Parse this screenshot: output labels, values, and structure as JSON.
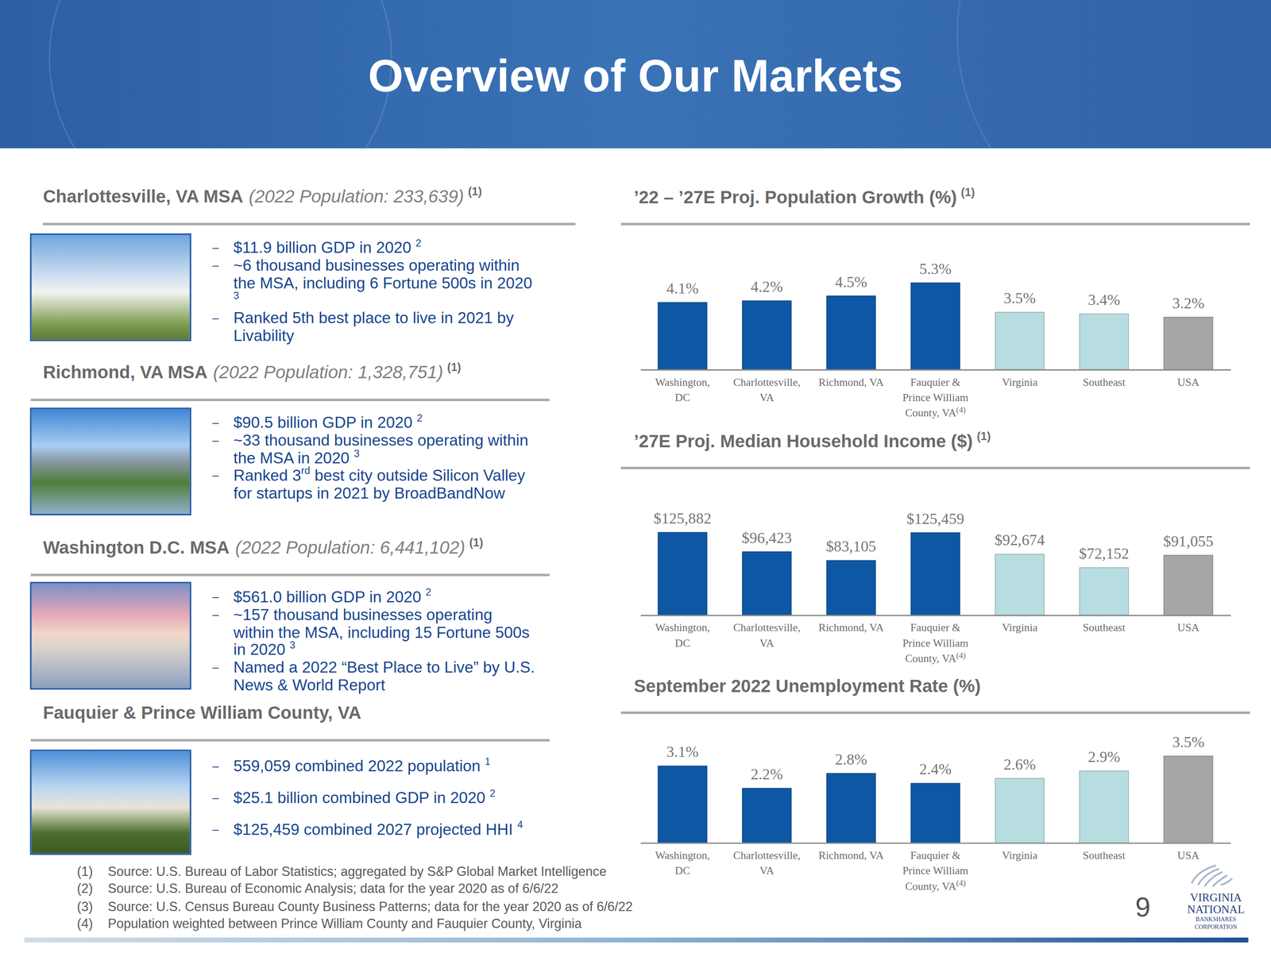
{
  "header": {
    "title": "Overview of Our Markets"
  },
  "panels": [
    {
      "name": "Charlottesville, VA MSA",
      "subtitle": "(2022 Population: 233,639)",
      "note": "(1)",
      "bullets": [
        [
          {
            "text": "$11.9 billion GDP in 2020 "
          },
          {
            "sup": "2"
          }
        ],
        [
          {
            "text": "~6 thousand businesses operating within the MSA, including 6 Fortune 500s in 2020 "
          },
          {
            "sup": "3"
          }
        ],
        [
          {
            "text": "Ranked 5th best place to live in 2021 by Livability"
          }
        ]
      ]
    },
    {
      "name": "Richmond, VA MSA",
      "subtitle": "(2022 Population: 1,328,751)",
      "note": "(1)",
      "bullets": [
        [
          {
            "text": "$90.5 billion GDP in 2020 "
          },
          {
            "sup": "2"
          }
        ],
        [
          {
            "text": "~33 thousand businesses operating within the MSA in 2020 "
          },
          {
            "sup": "3"
          }
        ],
        [
          {
            "text": "Ranked 3"
          },
          {
            "sup": "rd"
          },
          {
            "text": " best city outside Silicon Valley for startups in 2021 by BroadBandNow"
          }
        ]
      ]
    },
    {
      "name": "Washington D.C. MSA",
      "subtitle": "(2022 Population: 6,441,102)",
      "note": "(1)",
      "bullets": [
        [
          {
            "text": "$561.0 billion GDP in 2020 "
          },
          {
            "sup": "2"
          }
        ],
        [
          {
            "text": "~157 thousand businesses operating within the MSA, including 15 Fortune 500s in 2020 "
          },
          {
            "sup": "3"
          }
        ],
        [
          {
            "text": "Named a 2022 “Best Place to Live” by U.S. News & World Report"
          }
        ]
      ]
    },
    {
      "name": "Fauquier & Prince William County, VA",
      "bullets": [
        [
          {
            "text": "559,059 combined 2022 population "
          },
          {
            "sup": "1"
          }
        ],
        [
          {
            "text": "$25.1 billion combined GDP in 2020 "
          },
          {
            "sup": "2"
          }
        ],
        [
          {
            "text": "$125,459 combined 2027 projected HHI "
          },
          {
            "sup": "4"
          }
        ]
      ]
    }
  ],
  "chart_data": [
    {
      "type": "bar",
      "title": "’22 – ’27E Proj. Population Growth (%)",
      "title_note": "(1)",
      "categories": [
        "Washington, DC",
        "Charlottesville, VA",
        "Richmond, VA",
        "Fauquier & Prince William County, VA",
        "Virginia",
        "Southeast",
        "USA"
      ],
      "footnote_refs": [
        null,
        null,
        null,
        "(4)",
        null,
        null,
        null
      ],
      "values": [
        4.1,
        4.2,
        4.5,
        5.3,
        3.5,
        3.4,
        3.2
      ],
      "value_labels": [
        "4.1%",
        "4.2%",
        "4.5%",
        "5.3%",
        "3.5%",
        "3.4%",
        "3.2%"
      ],
      "colors": [
        "#0d57a4",
        "#0d57a4",
        "#0d57a4",
        "#0d57a4",
        "#b8dde1",
        "#b8dde1",
        "#a6a6a6"
      ],
      "data_labels": true,
      "tick_labels": "x"
    },
    {
      "type": "bar",
      "title": "’27E Proj. Median Household Income ($)",
      "title_note": "(1)",
      "categories": [
        "Washington, DC",
        "Charlottesville, VA",
        "Richmond, VA",
        "Fauquier & Prince William County, VA",
        "Virginia",
        "Southeast",
        "USA"
      ],
      "footnote_refs": [
        null,
        null,
        null,
        "(4)",
        null,
        null,
        null
      ],
      "values": [
        125882,
        96423,
        83105,
        125459,
        92674,
        72152,
        91055
      ],
      "value_labels": [
        "$125,882",
        "$96,423",
        "$83,105",
        "$125,459",
        "$92,674",
        "$72,152",
        "$91,055"
      ],
      "colors": [
        "#0d57a4",
        "#0d57a4",
        "#0d57a4",
        "#0d57a4",
        "#b8dde1",
        "#b8dde1",
        "#a6a6a6"
      ],
      "data_labels": true,
      "tick_labels": "x"
    },
    {
      "type": "bar",
      "title": "September 2022 Unemployment Rate (%)",
      "categories": [
        "Washington, DC",
        "Charlottesville, VA",
        "Richmond, VA",
        "Fauquier & Prince William County, VA",
        "Virginia",
        "Southeast",
        "USA"
      ],
      "footnote_refs": [
        null,
        null,
        null,
        "(4)",
        null,
        null,
        null
      ],
      "values": [
        3.1,
        2.2,
        2.8,
        2.4,
        2.6,
        2.9,
        3.5
      ],
      "value_labels": [
        "3.1%",
        "2.2%",
        "2.8%",
        "2.4%",
        "2.6%",
        "2.9%",
        "3.5%"
      ],
      "colors": [
        "#0d57a4",
        "#0d57a4",
        "#0d57a4",
        "#0d57a4",
        "#b8dde1",
        "#b8dde1",
        "#a6a6a6"
      ],
      "data_labels": true,
      "tick_labels": "x"
    }
  ],
  "footnotes": [
    {
      "number": "(1)",
      "text": "Source: U.S. Bureau of Labor Statistics; aggregated by S&P Global Market Intelligence"
    },
    {
      "number": "(2)",
      "text": "Source: U.S. Bureau of Economic Analysis; data for the year 2020 as of 6/6/22"
    },
    {
      "number": "(3)",
      "text": "Source: U.S. Census Bureau County Business Patterns; data for the year 2020 as of 6/6/22"
    },
    {
      "number": "(4)",
      "text": "Population weighted between Prince William County and Fauquier County, Virginia"
    }
  ],
  "page_number": "9",
  "logo": [
    "VIRGINIA",
    "NATIONAL",
    "BANKSHARES",
    "CORPORATION"
  ]
}
